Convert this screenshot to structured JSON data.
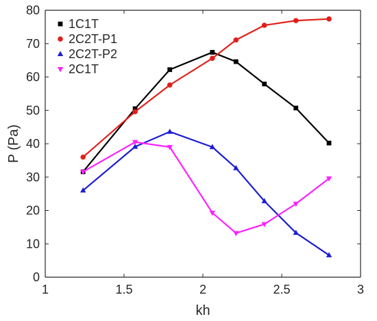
{
  "chart_data": {
    "type": "line",
    "xlabel": "kh",
    "ylabel": "P (Pa)",
    "xlim": [
      1,
      3
    ],
    "ylim": [
      0,
      80
    ],
    "xticks": [
      1,
      1.5,
      2,
      2.5,
      3
    ],
    "yticks": [
      0,
      10,
      20,
      30,
      40,
      50,
      60,
      70,
      80
    ],
    "xtick_labels": [
      "1",
      "1.5",
      "2",
      "2.5",
      "3"
    ],
    "ytick_labels": [
      "0",
      "10",
      "20",
      "30",
      "40",
      "50",
      "60",
      "70",
      "80"
    ],
    "grid": false,
    "legend_position": "top-left",
    "series": [
      {
        "name": "1C1T",
        "color": "#000000",
        "marker": "square",
        "x": [
          1.24,
          1.57,
          1.79,
          2.06,
          2.21,
          2.39,
          2.59,
          2.8
        ],
        "y": [
          31.6,
          50.5,
          62.2,
          67.4,
          64.6,
          57.9,
          50.7,
          40.2
        ]
      },
      {
        "name": "2C2T-P1",
        "color": "#e0201b",
        "marker": "circle",
        "x": [
          1.24,
          1.57,
          1.79,
          2.06,
          2.21,
          2.39,
          2.59,
          2.8
        ],
        "y": [
          36.0,
          49.6,
          57.6,
          65.6,
          71.1,
          75.5,
          76.9,
          77.4
        ]
      },
      {
        "name": "2C2T-P2",
        "color": "#1c1cd6",
        "marker": "triangle-up",
        "x": [
          1.24,
          1.57,
          1.79,
          2.06,
          2.21,
          2.39,
          2.59,
          2.8
        ],
        "y": [
          26.0,
          39.1,
          43.6,
          39.0,
          32.7,
          22.8,
          13.3,
          6.6
        ]
      },
      {
        "name": "2C1T",
        "color": "#ff1fff",
        "marker": "triangle-down",
        "x": [
          1.24,
          1.57,
          1.79,
          2.06,
          2.21,
          2.39,
          2.59,
          2.8
        ],
        "y": [
          31.6,
          40.5,
          39.0,
          19.3,
          13.2,
          15.9,
          22.0,
          29.6
        ]
      }
    ]
  }
}
